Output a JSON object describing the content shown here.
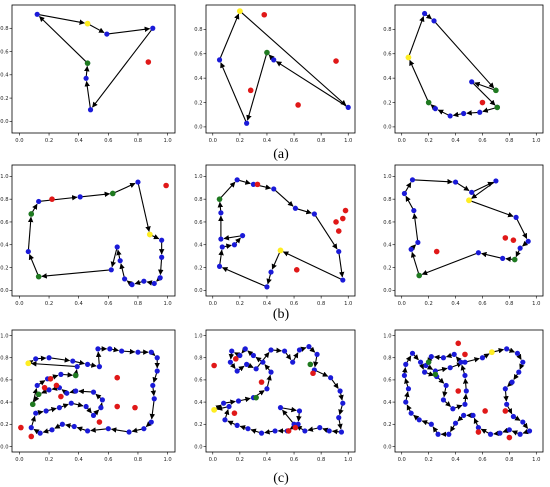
{
  "figure": {
    "row_labels": [
      "(a)",
      "(b)",
      "(c)"
    ]
  },
  "colors": {
    "node": "#1a1ad8",
    "depot": "#ffee22",
    "special": "#1f7a1f",
    "unvisited": "#e01818",
    "route": "#000000"
  },
  "chart_data": [
    {
      "type": "scatter",
      "row": "(a)",
      "column": 1,
      "xlim": [
        -0.05,
        1.05
      ],
      "ylim": [
        -0.1,
        1.0
      ],
      "xticks": [
        0.0,
        0.2,
        0.4,
        0.6,
        0.8,
        1.0
      ],
      "yticks": [
        0.0,
        0.2,
        0.4,
        0.6,
        0.8
      ],
      "route": [
        [
          0.12,
          0.92
        ],
        [
          0.46,
          0.84
        ],
        [
          0.59,
          0.75
        ],
        [
          0.9,
          0.8
        ],
        [
          0.48,
          0.1
        ],
        [
          0.45,
          0.37
        ],
        [
          0.46,
          0.5
        ],
        [
          0.12,
          0.92
        ]
      ],
      "depot": [
        [
          0.46,
          0.84
        ]
      ],
      "special": [
        [
          0.46,
          0.5
        ]
      ],
      "unvisited": [
        [
          0.87,
          0.51
        ]
      ]
    },
    {
      "type": "scatter",
      "row": "(a)",
      "column": 2,
      "xlim": [
        -0.05,
        1.05
      ],
      "ylim": [
        -0.05,
        1.0
      ],
      "xticks": [
        0.0,
        0.2,
        0.4,
        0.6,
        0.8,
        1.0
      ],
      "yticks": [
        0.0,
        0.2,
        0.4,
        0.6,
        0.8
      ],
      "route": [
        [
          0.2,
          0.95
        ],
        [
          1.0,
          0.16
        ],
        [
          0.45,
          0.55
        ],
        [
          0.4,
          0.61
        ],
        [
          0.25,
          0.03
        ],
        [
          0.05,
          0.55
        ],
        [
          0.2,
          0.95
        ]
      ],
      "depot": [
        [
          0.2,
          0.95
        ]
      ],
      "special": [
        [
          0.4,
          0.61
        ]
      ],
      "unvisited": [
        [
          0.38,
          0.92
        ],
        [
          0.28,
          0.3
        ],
        [
          0.63,
          0.18
        ],
        [
          0.91,
          0.54
        ]
      ]
    },
    {
      "type": "scatter",
      "row": "(a)",
      "column": 3,
      "xlim": [
        -0.05,
        1.05
      ],
      "ylim": [
        -0.05,
        1.0
      ],
      "xticks": [
        0.0,
        0.2,
        0.4,
        0.6,
        0.8,
        1.0
      ],
      "yticks": [
        0.0,
        0.2,
        0.4,
        0.6,
        0.8
      ],
      "route": [
        [
          0.05,
          0.57
        ],
        [
          0.17,
          0.93
        ],
        [
          0.24,
          0.87
        ],
        [
          0.7,
          0.3
        ],
        [
          0.52,
          0.37
        ],
        [
          0.71,
          0.16
        ],
        [
          0.58,
          0.12
        ],
        [
          0.46,
          0.11
        ],
        [
          0.36,
          0.09
        ],
        [
          0.25,
          0.15
        ],
        [
          0.2,
          0.2
        ],
        [
          0.05,
          0.57
        ]
      ],
      "depot": [
        [
          0.05,
          0.57
        ]
      ],
      "special": [
        [
          0.7,
          0.3
        ],
        [
          0.71,
          0.16
        ],
        [
          0.2,
          0.2
        ]
      ],
      "unvisited": [
        [
          0.6,
          0.2
        ]
      ]
    },
    {
      "type": "scatter",
      "row": "(b)",
      "column": 1,
      "xlim": [
        -0.05,
        1.05
      ],
      "ylim": [
        -0.05,
        1.1
      ],
      "xticks": [
        0.0,
        0.2,
        0.4,
        0.6,
        0.8,
        1.0
      ],
      "yticks": [
        0.0,
        0.2,
        0.4,
        0.6,
        0.8,
        1.0
      ],
      "route": [
        [
          0.08,
          0.67
        ],
        [
          0.13,
          0.78
        ],
        [
          0.41,
          0.82
        ],
        [
          0.63,
          0.85
        ],
        [
          0.8,
          0.95
        ],
        [
          0.88,
          0.49
        ],
        [
          0.96,
          0.44
        ],
        [
          0.96,
          0.29
        ],
        [
          0.95,
          0.11
        ],
        [
          0.91,
          0.06
        ],
        [
          0.84,
          0.08
        ],
        [
          0.76,
          0.05
        ],
        [
          0.71,
          0.1
        ],
        [
          0.68,
          0.26
        ],
        [
          0.66,
          0.38
        ],
        [
          0.62,
          0.18
        ],
        [
          0.13,
          0.12
        ],
        [
          0.06,
          0.34
        ],
        [
          0.08,
          0.67
        ]
      ],
      "depot": [
        [
          0.88,
          0.49
        ]
      ],
      "special": [
        [
          0.08,
          0.67
        ],
        [
          0.63,
          0.85
        ],
        [
          0.13,
          0.12
        ]
      ],
      "unvisited": [
        [
          0.22,
          0.8
        ],
        [
          0.99,
          0.92
        ]
      ]
    },
    {
      "type": "scatter",
      "row": "(b)",
      "column": 2,
      "xlim": [
        -0.05,
        1.05
      ],
      "ylim": [
        -0.05,
        1.1
      ],
      "xticks": [
        0.0,
        0.2,
        0.4,
        0.6,
        0.8,
        1.0
      ],
      "yticks": [
        0.0,
        0.2,
        0.4,
        0.6,
        0.8,
        1.0
      ],
      "route": [
        [
          0.05,
          0.8
        ],
        [
          0.18,
          0.97
        ],
        [
          0.3,
          0.93
        ],
        [
          0.45,
          0.89
        ],
        [
          0.61,
          0.72
        ],
        [
          0.75,
          0.67
        ],
        [
          0.93,
          0.34
        ],
        [
          0.96,
          0.09
        ],
        [
          0.5,
          0.35
        ],
        [
          0.43,
          0.16
        ],
        [
          0.4,
          0.03
        ],
        [
          0.05,
          0.21
        ],
        [
          0.07,
          0.38
        ],
        [
          0.16,
          0.4
        ],
        [
          0.22,
          0.48
        ],
        [
          0.06,
          0.45
        ],
        [
          0.06,
          0.68
        ],
        [
          0.05,
          0.8
        ]
      ],
      "depot": [
        [
          0.5,
          0.35
        ]
      ],
      "special": [
        [
          0.05,
          0.8
        ]
      ],
      "unvisited": [
        [
          0.33,
          0.93
        ],
        [
          0.93,
          0.52
        ],
        [
          0.96,
          0.63
        ],
        [
          0.98,
          0.7
        ],
        [
          0.91,
          0.6
        ],
        [
          0.62,
          0.18
        ]
      ]
    },
    {
      "type": "scatter",
      "row": "(b)",
      "column": 3,
      "xlim": [
        -0.05,
        1.05
      ],
      "ylim": [
        -0.05,
        1.1
      ],
      "xticks": [
        0.0,
        0.2,
        0.4,
        0.6,
        0.8,
        1.0
      ],
      "yticks": [
        0.0,
        0.2,
        0.4,
        0.6,
        0.8,
        1.0
      ],
      "route": [
        [
          0.02,
          0.85
        ],
        [
          0.08,
          0.97
        ],
        [
          0.4,
          0.95
        ],
        [
          0.52,
          0.86
        ],
        [
          0.7,
          0.96
        ],
        [
          0.5,
          0.79
        ],
        [
          0.85,
          0.64
        ],
        [
          0.94,
          0.43
        ],
        [
          0.88,
          0.37
        ],
        [
          0.84,
          0.27
        ],
        [
          0.75,
          0.28
        ],
        [
          0.57,
          0.33
        ],
        [
          0.13,
          0.13
        ],
        [
          0.07,
          0.36
        ],
        [
          0.12,
          0.42
        ],
        [
          0.09,
          0.7
        ],
        [
          0.02,
          0.85
        ]
      ],
      "depot": [
        [
          0.5,
          0.79
        ]
      ],
      "special": [
        [
          0.84,
          0.27
        ],
        [
          0.13,
          0.13
        ]
      ],
      "unvisited": [
        [
          0.77,
          0.46
        ],
        [
          0.83,
          0.44
        ],
        [
          0.26,
          0.34
        ]
      ]
    },
    {
      "type": "scatter",
      "row": "(c)",
      "column": 1,
      "xlim": [
        -0.05,
        1.05
      ],
      "ylim": [
        -0.05,
        1.05
      ],
      "xticks": [
        0.0,
        0.2,
        0.4,
        0.6,
        0.8,
        1.0
      ],
      "yticks": [
        0.0,
        0.2,
        0.4,
        0.6,
        0.8,
        1.0
      ],
      "route": [
        [
          0.06,
          0.75
        ],
        [
          0.11,
          0.79
        ],
        [
          0.2,
          0.8
        ],
        [
          0.36,
          0.77
        ],
        [
          0.46,
          0.74
        ],
        [
          0.54,
          0.72
        ],
        [
          0.53,
          0.88
        ],
        [
          0.61,
          0.88
        ],
        [
          0.69,
          0.86
        ],
        [
          0.8,
          0.85
        ],
        [
          0.89,
          0.85
        ],
        [
          0.93,
          0.8
        ],
        [
          0.93,
          0.68
        ],
        [
          0.9,
          0.55
        ],
        [
          0.91,
          0.43
        ],
        [
          0.89,
          0.22
        ],
        [
          0.84,
          0.16
        ],
        [
          0.74,
          0.13
        ],
        [
          0.6,
          0.16
        ],
        [
          0.46,
          0.14
        ],
        [
          0.37,
          0.18
        ],
        [
          0.29,
          0.2
        ],
        [
          0.22,
          0.15
        ],
        [
          0.14,
          0.12
        ],
        [
          0.08,
          0.17
        ],
        [
          0.11,
          0.3
        ],
        [
          0.18,
          0.32
        ],
        [
          0.27,
          0.35
        ],
        [
          0.35,
          0.39
        ],
        [
          0.45,
          0.36
        ],
        [
          0.5,
          0.28
        ],
        [
          0.55,
          0.35
        ],
        [
          0.56,
          0.42
        ],
        [
          0.5,
          0.49
        ],
        [
          0.38,
          0.5
        ],
        [
          0.32,
          0.48
        ],
        [
          0.27,
          0.53
        ],
        [
          0.2,
          0.51
        ],
        [
          0.13,
          0.47
        ],
        [
          0.09,
          0.38
        ],
        [
          0.12,
          0.55
        ],
        [
          0.19,
          0.61
        ],
        [
          0.28,
          0.65
        ],
        [
          0.38,
          0.64
        ],
        [
          0.39,
          0.72
        ],
        [
          0.06,
          0.75
        ]
      ],
      "depot": [
        [
          0.06,
          0.75
        ]
      ],
      "special": [
        [
          0.38,
          0.64
        ],
        [
          0.13,
          0.47
        ],
        [
          0.09,
          0.38
        ]
      ],
      "unvisited": [
        [
          0.21,
          0.61
        ],
        [
          0.17,
          0.53
        ],
        [
          0.25,
          0.55
        ],
        [
          0.28,
          0.45
        ],
        [
          0.66,
          0.36
        ],
        [
          0.66,
          0.62
        ],
        [
          0.78,
          0.35
        ],
        [
          0.08,
          0.09
        ],
        [
          0.01,
          0.17
        ],
        [
          0.54,
          0.22
        ]
      ]
    },
    {
      "type": "scatter",
      "row": "(c)",
      "column": 2,
      "xlim": [
        -0.05,
        1.05
      ],
      "ylim": [
        -0.05,
        1.05
      ],
      "xticks": [
        0.0,
        0.2,
        0.4,
        0.6,
        0.8,
        1.0
      ],
      "yticks": [
        0.0,
        0.2,
        0.4,
        0.6,
        0.8,
        1.0
      ],
      "route": [
        [
          0.01,
          0.33
        ],
        [
          0.08,
          0.39
        ],
        [
          0.19,
          0.41
        ],
        [
          0.3,
          0.44
        ],
        [
          0.4,
          0.52
        ],
        [
          0.43,
          0.67
        ],
        [
          0.37,
          0.76
        ],
        [
          0.3,
          0.82
        ],
        [
          0.24,
          0.88
        ],
        [
          0.2,
          0.82
        ],
        [
          0.14,
          0.86
        ],
        [
          0.13,
          0.76
        ],
        [
          0.18,
          0.68
        ],
        [
          0.25,
          0.74
        ],
        [
          0.32,
          0.7
        ],
        [
          0.43,
          0.87
        ],
        [
          0.53,
          0.86
        ],
        [
          0.59,
          0.76
        ],
        [
          0.64,
          0.87
        ],
        [
          0.71,
          0.9
        ],
        [
          0.77,
          0.83
        ],
        [
          0.75,
          0.69
        ],
        [
          0.87,
          0.62
        ],
        [
          0.94,
          0.5
        ],
        [
          0.96,
          0.39
        ],
        [
          0.93,
          0.26
        ],
        [
          0.95,
          0.13
        ],
        [
          0.86,
          0.14
        ],
        [
          0.79,
          0.17
        ],
        [
          0.68,
          0.14
        ],
        [
          0.6,
          0.2
        ],
        [
          0.5,
          0.35
        ],
        [
          0.64,
          0.32
        ],
        [
          0.63,
          0.2
        ],
        [
          0.55,
          0.14
        ],
        [
          0.46,
          0.14
        ],
        [
          0.36,
          0.12
        ],
        [
          0.26,
          0.16
        ],
        [
          0.18,
          0.19
        ],
        [
          0.09,
          0.24
        ],
        [
          0.12,
          0.36
        ],
        [
          0.01,
          0.33
        ]
      ],
      "depot": [
        [
          0.01,
          0.33
        ]
      ],
      "special": [
        [
          0.32,
          0.44
        ],
        [
          0.72,
          0.74
        ]
      ],
      "unvisited": [
        [
          0.01,
          0.73
        ],
        [
          0.16,
          0.3
        ],
        [
          0.17,
          0.79
        ],
        [
          0.36,
          0.58
        ],
        [
          0.74,
          0.66
        ],
        [
          0.56,
          0.14
        ],
        [
          0.61,
          0.17
        ]
      ]
    },
    {
      "type": "scatter",
      "row": "(c)",
      "column": 3,
      "xlim": [
        -0.05,
        1.05
      ],
      "ylim": [
        -0.05,
        1.05
      ],
      "xticks": [
        0.0,
        0.2,
        0.4,
        0.6,
        0.8,
        1.0
      ],
      "yticks": [
        0.0,
        0.2,
        0.4,
        0.6,
        0.8,
        1.0
      ],
      "route": [
        [
          0.67,
          0.85
        ],
        [
          0.78,
          0.88
        ],
        [
          0.86,
          0.84
        ],
        [
          0.9,
          0.76
        ],
        [
          0.87,
          0.67
        ],
        [
          0.82,
          0.58
        ],
        [
          0.77,
          0.52
        ],
        [
          0.78,
          0.38
        ],
        [
          0.83,
          0.27
        ],
        [
          0.9,
          0.22
        ],
        [
          0.95,
          0.14
        ],
        [
          0.88,
          0.11
        ],
        [
          0.8,
          0.15
        ],
        [
          0.73,
          0.12
        ],
        [
          0.66,
          0.11
        ],
        [
          0.57,
          0.17
        ],
        [
          0.53,
          0.28
        ],
        [
          0.46,
          0.28
        ],
        [
          0.4,
          0.21
        ],
        [
          0.35,
          0.11
        ],
        [
          0.27,
          0.11
        ],
        [
          0.22,
          0.2
        ],
        [
          0.13,
          0.24
        ],
        [
          0.07,
          0.3
        ],
        [
          0.03,
          0.4
        ],
        [
          0.05,
          0.52
        ],
        [
          0.02,
          0.64
        ],
        [
          0.03,
          0.74
        ],
        [
          0.08,
          0.84
        ],
        [
          0.14,
          0.76
        ],
        [
          0.17,
          0.67
        ],
        [
          0.26,
          0.63
        ],
        [
          0.33,
          0.55
        ],
        [
          0.31,
          0.42
        ],
        [
          0.38,
          0.34
        ],
        [
          0.47,
          0.38
        ],
        [
          0.48,
          0.5
        ],
        [
          0.47,
          0.64
        ],
        [
          0.44,
          0.76
        ],
        [
          0.39,
          0.83
        ],
        [
          0.31,
          0.8
        ],
        [
          0.22,
          0.81
        ],
        [
          0.18,
          0.73
        ],
        [
          0.25,
          0.68
        ],
        [
          0.36,
          0.71
        ],
        [
          0.47,
          0.76
        ],
        [
          0.6,
          0.8
        ],
        [
          0.67,
          0.85
        ]
      ],
      "depot": [
        [
          0.67,
          0.85
        ]
      ],
      "special": [
        [
          0.2,
          0.76
        ],
        [
          0.25,
          0.65
        ]
      ],
      "unvisited": [
        [
          0.42,
          0.93
        ],
        [
          0.47,
          0.83
        ],
        [
          0.42,
          0.5
        ],
        [
          0.62,
          0.32
        ],
        [
          0.77,
          0.32
        ],
        [
          0.8,
          0.08
        ],
        [
          0.57,
          0.13
        ]
      ]
    }
  ]
}
